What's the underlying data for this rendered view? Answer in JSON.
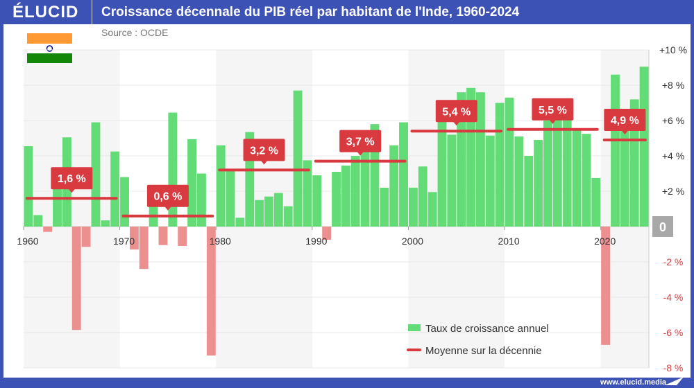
{
  "header": {
    "logo": "ÉLUCID",
    "title": "Croissance décennale du PIB réel par habitant de l'Inde, 1960-2024",
    "source": "Source : OCDE"
  },
  "footer": {
    "url": "www.elucid.media"
  },
  "colors": {
    "brand": "#3d52b5",
    "positive": "#63db76",
    "negative": "#ec8f8f",
    "average": "#d93a3f",
    "zero_box": "#a8a8a8"
  },
  "chart_data": {
    "type": "bar",
    "title": "Croissance décennale du PIB réel par habitant de l'Inde, 1960-2024",
    "ylim": [
      -8,
      10
    ],
    "y_ticks": [
      "+10 %",
      "+8 %",
      "+6 %",
      "+4 %",
      "+2 %",
      "0",
      "-2 %",
      "-4 %",
      "-6 %",
      "-8 %"
    ],
    "y_tick_values": [
      10,
      8,
      6,
      4,
      2,
      0,
      -2,
      -4,
      -6,
      -8
    ],
    "x_ticks": [
      "1960",
      "1970",
      "1980",
      "1990",
      "2000",
      "2010",
      "2020"
    ],
    "grid": true,
    "legend_placement": "bottom-right",
    "series": [
      {
        "name": "Taux de croissance annuel",
        "type": "bar",
        "x": [
          1960,
          1961,
          1962,
          1963,
          1964,
          1965,
          1966,
          1967,
          1968,
          1969,
          1970,
          1971,
          1972,
          1973,
          1974,
          1975,
          1976,
          1977,
          1978,
          1979,
          1980,
          1981,
          1982,
          1983,
          1984,
          1985,
          1986,
          1987,
          1988,
          1989,
          1990,
          1991,
          1992,
          1993,
          1994,
          1995,
          1996,
          1997,
          1998,
          1999,
          2000,
          2001,
          2002,
          2003,
          2004,
          2005,
          2006,
          2007,
          2008,
          2009,
          2010,
          2011,
          2012,
          2013,
          2014,
          2015,
          2016,
          2017,
          2018,
          2019,
          2020,
          2021,
          2022,
          2023,
          2024
        ],
        "values": [
          4.55,
          0.65,
          -0.3,
          2.6,
          5.05,
          -5.85,
          -1.15,
          5.9,
          0.35,
          4.25,
          2.8,
          -1.3,
          -2.4,
          2.2,
          -1.05,
          6.45,
          -1.1,
          4.95,
          3.0,
          -7.3,
          4.6,
          3.2,
          0.5,
          5.35,
          1.5,
          1.7,
          1.9,
          1.15,
          7.7,
          3.75,
          2.9,
          -0.75,
          3.1,
          3.45,
          4.0,
          4.5,
          5.8,
          2.2,
          4.6,
          5.9,
          2.2,
          3.4,
          1.95,
          6.05,
          5.2,
          7.6,
          7.85,
          7.6,
          5.15,
          7.0,
          7.3,
          5.1,
          4.0,
          4.9,
          6.0,
          6.5,
          6.9,
          5.5,
          5.25,
          2.75,
          -6.7,
          8.6,
          6.0,
          7.2,
          9.05
        ]
      },
      {
        "name": "Moyenne sur la décennie",
        "type": "line",
        "decades": [
          {
            "start": 1960,
            "end": 1969,
            "value": 1.6,
            "label": "1,6 %"
          },
          {
            "start": 1970,
            "end": 1979,
            "value": 0.6,
            "label": "0,6 %"
          },
          {
            "start": 1980,
            "end": 1989,
            "value": 3.2,
            "label": "3,2 %"
          },
          {
            "start": 1990,
            "end": 1999,
            "value": 3.7,
            "label": "3,7 %"
          },
          {
            "start": 2000,
            "end": 2009,
            "value": 5.4,
            "label": "5,4 %"
          },
          {
            "start": 2010,
            "end": 2019,
            "value": 5.5,
            "label": "5,5 %"
          },
          {
            "start": 2020,
            "end": 2024,
            "value": 4.9,
            "label": "4,9 %"
          }
        ]
      }
    ]
  }
}
